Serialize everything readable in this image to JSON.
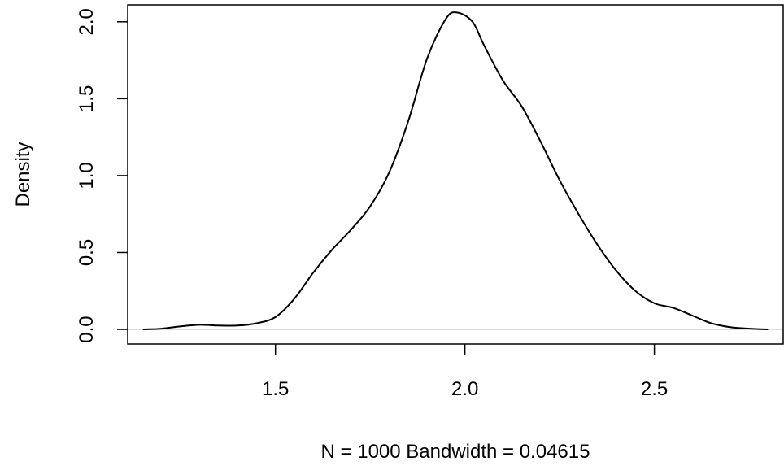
{
  "chart_data": {
    "type": "line",
    "title": "",
    "xlabel": "N = 1000   Bandwidth = 0.04615",
    "ylabel": "Density",
    "xlim": [
      1.11,
      2.84
    ],
    "ylim": [
      -0.095,
      2.11
    ],
    "x_ticks": [
      1.5,
      2.0,
      2.5
    ],
    "x_tick_labels": [
      "1.5",
      "2.0",
      "2.5"
    ],
    "y_ticks": [
      0.0,
      0.5,
      1.0,
      1.5,
      2.0
    ],
    "y_tick_labels": [
      "0.0",
      "0.5",
      "1.0",
      "1.5",
      "2.0"
    ],
    "zero_line": 0.0,
    "grid": false,
    "legend": "none",
    "colors": {
      "line": "#000000",
      "zero_line": "#bebebe",
      "axis": "#000000"
    },
    "series": [
      {
        "x": [
          1.15,
          1.2,
          1.25,
          1.3,
          1.35,
          1.4,
          1.45,
          1.5,
          1.55,
          1.6,
          1.65,
          1.7,
          1.75,
          1.8,
          1.85,
          1.9,
          1.95,
          1.98,
          2.02,
          2.05,
          2.1,
          2.15,
          2.2,
          2.25,
          2.3,
          2.35,
          2.4,
          2.45,
          2.5,
          2.55,
          2.6,
          2.65,
          2.7,
          2.75,
          2.8
        ],
        "y": [
          0.0,
          0.005,
          0.02,
          0.03,
          0.025,
          0.025,
          0.04,
          0.08,
          0.2,
          0.37,
          0.52,
          0.65,
          0.8,
          1.02,
          1.35,
          1.76,
          2.02,
          2.06,
          2.0,
          1.85,
          1.62,
          1.45,
          1.22,
          0.97,
          0.75,
          0.55,
          0.38,
          0.25,
          0.17,
          0.14,
          0.09,
          0.04,
          0.015,
          0.005,
          0.0
        ]
      }
    ]
  }
}
